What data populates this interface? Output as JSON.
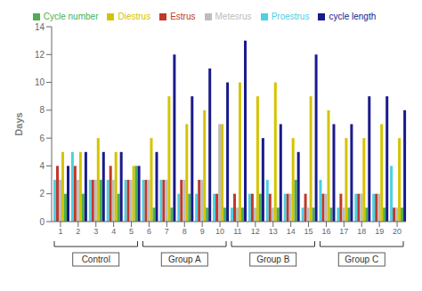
{
  "chart_data": {
    "type": "bar",
    "categories": [
      1,
      2,
      3,
      4,
      5,
      6,
      7,
      8,
      9,
      10,
      11,
      12,
      13,
      14,
      15,
      16,
      17,
      18,
      19,
      20
    ],
    "series": [
      {
        "name": "Proestrus",
        "color": "#4dd0e1",
        "values": [
          3,
          5,
          3,
          3,
          3,
          3,
          3,
          2,
          2,
          2,
          1,
          2,
          3,
          2,
          1,
          3,
          1,
          2,
          2,
          4
        ]
      },
      {
        "name": "Estrus",
        "color": "#c0392b",
        "values": [
          4,
          4,
          3,
          4,
          3,
          3,
          3,
          3,
          3,
          2,
          2,
          2,
          2,
          2,
          2,
          2,
          2,
          2,
          2,
          1
        ]
      },
      {
        "name": "Metesrus",
        "color": "#bdbdbd",
        "values": [
          3,
          3,
          3,
          3,
          3,
          3,
          3,
          3,
          3,
          7,
          1,
          1,
          1,
          2,
          1,
          2,
          1,
          2,
          2,
          1
        ]
      },
      {
        "name": "Diestrus",
        "color": "#d4c400",
        "values": [
          5,
          5,
          6,
          5,
          4,
          6,
          9,
          7,
          8,
          7,
          10,
          9,
          10,
          6,
          9,
          8,
          6,
          6,
          7,
          6
        ]
      },
      {
        "name": "Cycle number",
        "color": "#4caf50",
        "values": [
          2,
          2,
          3,
          2,
          4,
          1,
          1,
          2,
          1,
          1,
          1,
          2,
          1,
          3,
          1,
          1,
          1,
          1,
          1,
          1
        ]
      },
      {
        "name": "cycle length",
        "color": "#1a1a8c",
        "values": [
          4,
          5,
          5,
          5,
          4,
          5,
          12,
          9,
          11,
          10,
          13,
          6,
          7,
          5,
          12,
          7,
          7,
          9,
          9,
          8
        ]
      }
    ],
    "ylabel": "Days",
    "ylim": [
      0,
      14
    ],
    "yticks": [
      0,
      2,
      4,
      6,
      8,
      10,
      12,
      14
    ],
    "groups": [
      {
        "label": "Control",
        "members": [
          1,
          2,
          3,
          4,
          5
        ]
      },
      {
        "label": "Group A",
        "members": [
          6,
          7,
          8,
          9,
          10
        ]
      },
      {
        "label": "Group B",
        "members": [
          11,
          12,
          13,
          14,
          15
        ]
      },
      {
        "label": "Group C",
        "members": [
          16,
          17,
          18,
          19,
          20
        ]
      }
    ],
    "legend": "top",
    "grid": false
  }
}
